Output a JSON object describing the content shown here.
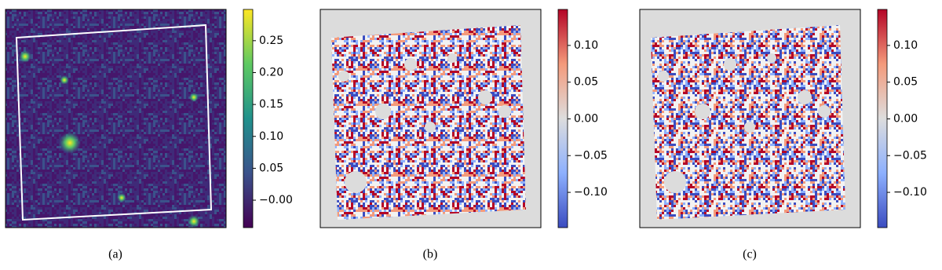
{
  "chart_data": [
    {
      "type": "heatmap",
      "caption": "(a)",
      "colormap": "viridis",
      "clim": [
        -0.043,
        0.299
      ],
      "cticks": [
        {
          "value": -0.0,
          "label": "−0.00"
        },
        0.05,
        {
          "value": 0.1,
          "label": "0.10"
        },
        0.15,
        {
          "value": 0.2,
          "label": "0.20"
        },
        0.25
      ]
    },
    {
      "type": "heatmap",
      "caption": "(b)",
      "colormap": "coolwarm",
      "clim": [
        -0.148,
        0.149
      ],
      "cticks": [
        {
          "value": -0.1,
          "label": "−0.10"
        },
        {
          "value": -0.05,
          "label": "−0.05"
        },
        {
          "value": 0,
          "label": "0.00"
        },
        0.05,
        {
          "value": 0.1,
          "label": "0.10"
        }
      ]
    },
    {
      "type": "heatmap",
      "caption": "(c)",
      "colormap": "coolwarm",
      "clim": [
        -0.148,
        0.149
      ],
      "cticks": [
        {
          "value": -0.1,
          "label": "−0.10"
        },
        {
          "value": -0.05,
          "label": "−0.05"
        },
        {
          "value": 0,
          "label": "0.00"
        },
        0.05,
        {
          "value": 0.1,
          "label": "0.10"
        }
      ]
    }
  ]
}
